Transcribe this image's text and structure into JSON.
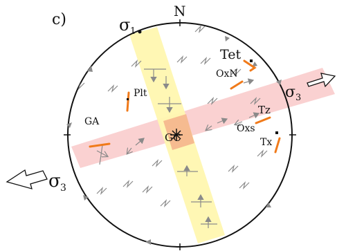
{
  "panel_label": "c)",
  "north_label": "N",
  "sigma1": {
    "symbol": "σ",
    "subscript": "1"
  },
  "sigma3_right": {
    "symbol": "σ",
    "subscript": "3"
  },
  "sigma3_left": {
    "symbol": "σ",
    "subscript": "3"
  },
  "sites": {
    "tet": "Tet",
    "oxn": "OxN",
    "tz": "Tz",
    "oxs": "Oxs",
    "tx": "Tx",
    "plt": "Plt",
    "ga": "GA",
    "gc": "GC"
  },
  "colors": {
    "compression_band": "#fff7b0",
    "extension_band": "#f9cccc",
    "intersection": "#f5b08a",
    "site_marker": "#f07a1a",
    "arrow_gray": "#8a8a8a",
    "outline": "#111111"
  }
}
